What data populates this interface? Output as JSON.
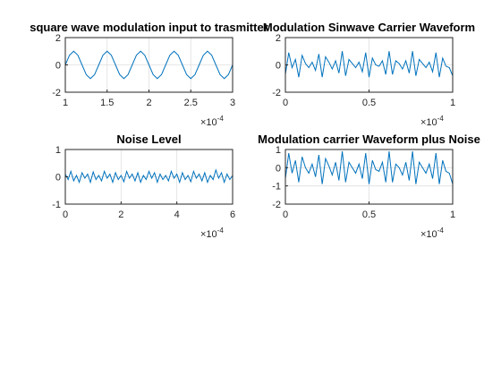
{
  "chart_data": [
    {
      "type": "line",
      "title": "square wave modulation input to trasmitter",
      "xlim": [
        0.0001,
        0.0003
      ],
      "ylim": [
        -2,
        2
      ],
      "xticks": [
        1,
        1.5,
        2,
        2.5,
        3
      ],
      "xtick_labels": [
        "1",
        "1.5",
        "2",
        "2.5",
        "3"
      ],
      "yticks": [
        -2,
        0,
        2
      ],
      "ytick_labels": [
        "-2",
        "0",
        "2"
      ],
      "x_exponent_label": "×10",
      "x_exponent": "-4",
      "grid": true,
      "series": [
        {
          "x": [
            0.0001,
            0.000105,
            0.00011,
            0.000115,
            0.00012,
            0.000125,
            0.00013,
            0.000135,
            0.00014,
            0.000145,
            0.00015,
            0.000155,
            0.00016,
            0.000165,
            0.00017,
            0.000175,
            0.00018,
            0.000185,
            0.00019,
            0.000195,
            0.0002,
            0.000205,
            0.00021,
            0.000215,
            0.00022,
            0.000225,
            0.00023,
            0.000235,
            0.00024,
            0.000245,
            0.00025,
            0.000255,
            0.00026,
            0.000265,
            0.00027,
            0.000275,
            0.00028,
            0.000285,
            0.00029,
            0.000295,
            0.0003
          ],
          "y": [
            0,
            0.71,
            1,
            0.71,
            0,
            -0.71,
            -1,
            -0.71,
            0,
            0.71,
            1,
            0.71,
            0,
            -0.71,
            -1,
            -0.71,
            0,
            0.71,
            1,
            0.71,
            0,
            -0.71,
            -1,
            -0.71,
            0,
            0.71,
            1,
            0.71,
            0,
            -0.71,
            -1,
            -0.71,
            0,
            0.71,
            1,
            0.71,
            0,
            -0.71,
            -1,
            -0.71,
            0
          ]
        }
      ]
    },
    {
      "type": "line",
      "title": "Modulation Sinwave Carrier Waveform",
      "xlim": [
        0,
        0.0001
      ],
      "ylim": [
        -2,
        2
      ],
      "xticks": [
        0,
        0.5,
        1
      ],
      "xtick_labels": [
        "0",
        "0.5",
        "1"
      ],
      "yticks": [
        -2,
        0,
        2
      ],
      "ytick_labels": [
        "-2",
        "0",
        "2"
      ],
      "x_exponent_label": "×10",
      "x_exponent": "-4",
      "grid": true,
      "series": [
        {
          "x": [
            0,
            2e-06,
            4e-06,
            6e-06,
            8e-06,
            1e-05,
            1.2e-05,
            1.4e-05,
            1.6e-05,
            1.8e-05,
            2e-05,
            2.2e-05,
            2.4e-05,
            2.6e-05,
            2.8e-05,
            3e-05,
            3.2e-05,
            3.4e-05,
            3.6e-05,
            3.8e-05,
            4e-05,
            4.2e-05,
            4.4e-05,
            4.6e-05,
            4.8e-05,
            5e-05,
            5.2e-05,
            5.4e-05,
            5.6e-05,
            5.8e-05,
            6e-05,
            6.2e-05,
            6.4e-05,
            6.6e-05,
            6.8e-05,
            7e-05,
            7.2e-05,
            7.4e-05,
            7.6e-05,
            7.8e-05,
            8e-05,
            8.2e-05,
            8.4e-05,
            8.6e-05,
            8.8e-05,
            9e-05,
            9.2e-05,
            9.4e-05,
            9.6e-05,
            9.8e-05,
            0.0001
          ],
          "y": [
            -0.7,
            0.9,
            -0.2,
            0.4,
            -0.9,
            0.7,
            0.1,
            -0.2,
            0.2,
            -0.4,
            0.8,
            -0.9,
            0.6,
            0.2,
            -0.3,
            0.3,
            -0.6,
            1.0,
            -0.8,
            0.4,
            0.1,
            -0.2,
            0.2,
            -0.5,
            0.9,
            -0.9,
            0.5,
            0.0,
            -0.1,
            0.3,
            -0.7,
            1.0,
            -0.7,
            0.3,
            0.1,
            -0.3,
            0.3,
            -0.6,
            1.0,
            -0.8,
            0.4,
            0.1,
            -0.2,
            0.2,
            -0.5,
            0.9,
            -0.9,
            0.5,
            -0.1,
            -0.2,
            -0.8
          ]
        }
      ]
    },
    {
      "type": "line",
      "title": "Noise Level",
      "xlim": [
        0,
        0.0006
      ],
      "ylim": [
        -1,
        1
      ],
      "xticks": [
        0,
        2,
        4,
        6
      ],
      "xtick_labels": [
        "0",
        "2",
        "4",
        "6"
      ],
      "yticks": [
        -1,
        0,
        1
      ],
      "ytick_labels": [
        "-1",
        "0",
        "1"
      ],
      "x_exponent_label": "×10",
      "x_exponent": "-4",
      "grid": true,
      "series": [
        {
          "x": [
            0,
            1e-05,
            2e-05,
            3e-05,
            4e-05,
            5e-05,
            6e-05,
            7e-05,
            8e-05,
            9e-05,
            0.0001,
            0.00011,
            0.00012,
            0.00013,
            0.00014,
            0.00015,
            0.00016,
            0.00017,
            0.00018,
            0.00019,
            0.0002,
            0.00021,
            0.00022,
            0.00023,
            0.00024,
            0.00025,
            0.00026,
            0.00027,
            0.00028,
            0.00029,
            0.0003,
            0.00031,
            0.00032,
            0.00033,
            0.00034,
            0.00035,
            0.00036,
            0.00037,
            0.00038,
            0.00039,
            0.0004,
            0.00041,
            0.00042,
            0.00043,
            0.00044,
            0.00045,
            0.00046,
            0.00047,
            0.00048,
            0.00049,
            0.0005,
            0.00051,
            0.00052,
            0.00053,
            0.00054,
            0.00055,
            0.00056,
            0.00057,
            0.00058,
            0.00059,
            0.0006
          ],
          "y": [
            0.1,
            -0.1,
            0.2,
            -0.15,
            0.05,
            -0.2,
            0.15,
            -0.05,
            0.1,
            -0.2,
            0.18,
            -0.1,
            0.05,
            -0.15,
            0.2,
            -0.05,
            0.1,
            -0.2,
            0.15,
            -0.1,
            0.05,
            -0.18,
            0.2,
            -0.05,
            0.1,
            -0.15,
            0.15,
            -0.2,
            0.05,
            -0.1,
            0.2,
            -0.05,
            0.15,
            -0.2,
            0.1,
            -0.1,
            0.05,
            -0.15,
            0.2,
            -0.05,
            0.1,
            -0.2,
            0.15,
            -0.1,
            0.05,
            -0.18,
            0.2,
            -0.05,
            0.1,
            -0.15,
            0.15,
            -0.2,
            0.05,
            -0.1,
            0.25,
            -0.05,
            0.15,
            -0.2,
            0.1,
            -0.1,
            0.05
          ]
        }
      ]
    },
    {
      "type": "line",
      "title": "Modulation carrier Waveform plus Noise",
      "xlim": [
        0,
        0.0001
      ],
      "ylim": [
        -2,
        1
      ],
      "xticks": [
        0,
        0.5,
        1
      ],
      "xtick_labels": [
        "0",
        "0.5",
        "1"
      ],
      "yticks": [
        -2,
        -1,
        0,
        1
      ],
      "ytick_labels": [
        "-2",
        "-1",
        "0",
        "1"
      ],
      "x_exponent_label": "×10",
      "x_exponent": "-4",
      "grid": true,
      "series": [
        {
          "x": [
            0,
            2e-06,
            4e-06,
            6e-06,
            8e-06,
            1e-05,
            1.2e-05,
            1.4e-05,
            1.6e-05,
            1.8e-05,
            2e-05,
            2.2e-05,
            2.4e-05,
            2.6e-05,
            2.8e-05,
            3e-05,
            3.2e-05,
            3.4e-05,
            3.6e-05,
            3.8e-05,
            4e-05,
            4.2e-05,
            4.4e-05,
            4.6e-05,
            4.8e-05,
            5e-05,
            5.2e-05,
            5.4e-05,
            5.6e-05,
            5.8e-05,
            6e-05,
            6.2e-05,
            6.4e-05,
            6.6e-05,
            6.8e-05,
            7e-05,
            7.2e-05,
            7.4e-05,
            7.6e-05,
            7.8e-05,
            8e-05,
            8.2e-05,
            8.4e-05,
            8.6e-05,
            8.8e-05,
            9e-05,
            9.2e-05,
            9.4e-05,
            9.6e-05,
            9.8e-05,
            0.0001
          ],
          "y": [
            -0.6,
            0.8,
            -0.3,
            0.4,
            -0.8,
            0.6,
            0.0,
            -0.3,
            0.2,
            -0.5,
            0.7,
            -0.9,
            0.5,
            0.1,
            -0.4,
            0.3,
            -0.7,
            0.9,
            -0.8,
            0.3,
            0.0,
            -0.3,
            0.2,
            -0.6,
            0.8,
            -0.9,
            0.4,
            -0.1,
            -0.2,
            0.3,
            -0.8,
            0.9,
            -0.8,
            0.2,
            0.0,
            -0.4,
            0.3,
            -0.7,
            0.9,
            -0.9,
            0.3,
            0.0,
            -0.3,
            0.2,
            -0.6,
            0.8,
            -0.9,
            0.4,
            -0.2,
            -0.3,
            -0.9
          ]
        }
      ]
    }
  ]
}
